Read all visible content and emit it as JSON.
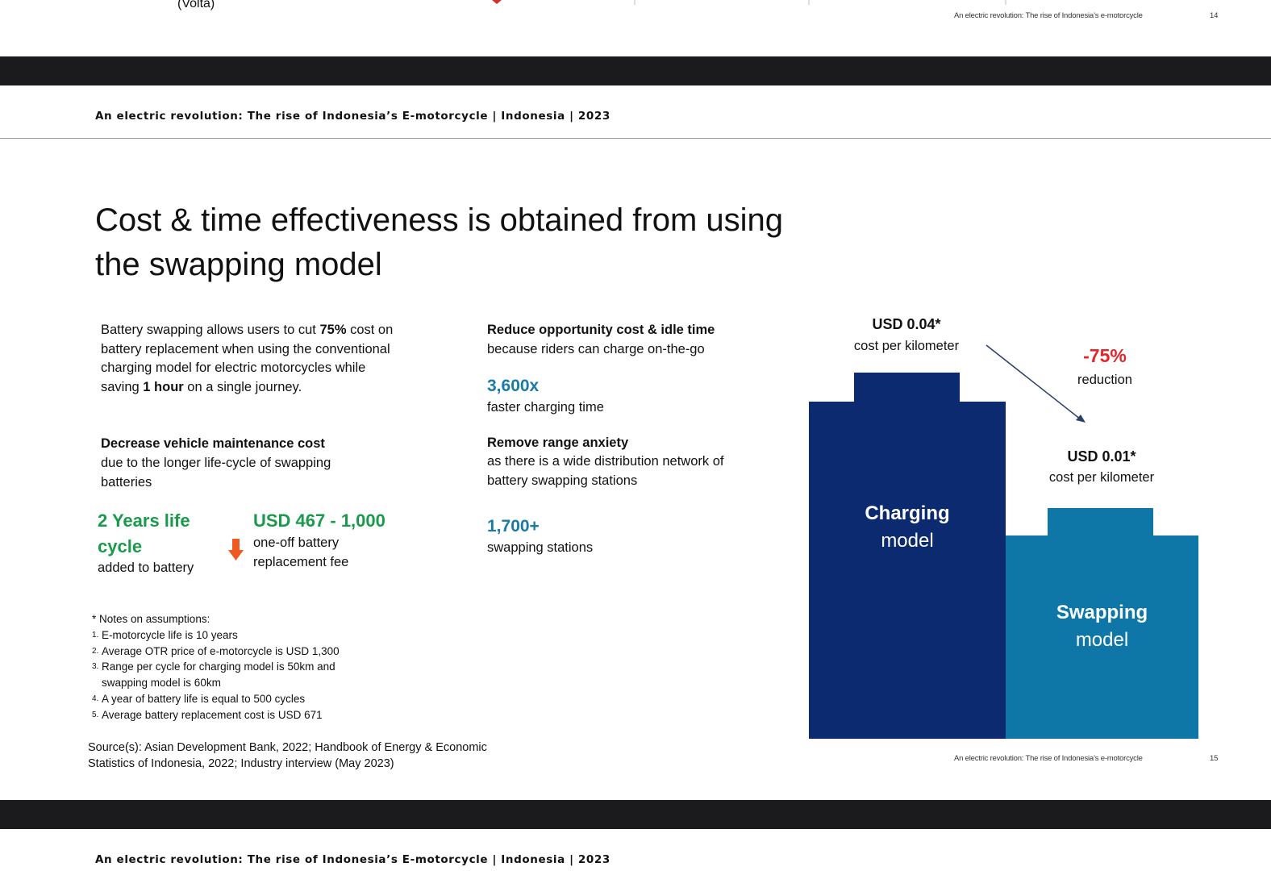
{
  "prev_page": {
    "fragment": "(Volta)",
    "footer": "An electric revolution: The rise of Indonesia’s e-motorcycle",
    "page_number": "14"
  },
  "header": {
    "title": "An electric revolution: The rise of Indonesia’s E-motorcycle | Indonesia | 2023"
  },
  "slide": {
    "title": [
      "Cost & time effectiveness is obtained from using",
      "the swapping model"
    ],
    "intro": [
      "Battery swapping allows users to cut ",
      "75%",
      " cost on battery replacement when using the conventional charging model for electric motorcycles while saving ",
      "1 hour",
      " on a single journey."
    ],
    "maintenance": {
      "heading": "Decrease vehicle maintenance cost",
      "text": "due to the longer life-cycle of swapping batteries"
    },
    "life_cycle": {
      "value": "2 Years life cycle",
      "text": "added to battery"
    },
    "fee": {
      "value": "USD 467 - 1,000",
      "text": "one-off battery replacement fee"
    },
    "notes": {
      "heading": "* Notes on assumptions:",
      "items": [
        {
          "marker": "1.",
          "text": "E-motorcycle life is 10 years"
        },
        {
          "marker": "2.",
          "text": "Average OTR price of e-motorcycle is USD 1,300"
        },
        {
          "marker": "3.",
          "text": "Range per cycle for charging model is 50km and swapping model is 60km"
        },
        {
          "marker": "4.",
          "text": "A year of battery life is equal to 500 cycles"
        },
        {
          "marker": "5.",
          "text": "Average battery replacement cost is USD 671"
        }
      ]
    },
    "source": "Source(s): Asian Development Bank, 2022; Handbook of Energy & Economic Statistics of Indonesia, 2022; Industry interview (May 2023)",
    "opportunity": {
      "heading": "Reduce opportunity cost & idle time",
      "text": "because riders can charge on-the-go"
    },
    "charging_speed": {
      "value": "3,600x",
      "text": "faster charging time"
    },
    "range": {
      "heading": "Remove range anxiety",
      "text": "as there is a wide distribution network of battery swapping stations"
    },
    "stations": {
      "value": "1,700+",
      "text": "swapping stations"
    },
    "graphic": {
      "charging": {
        "cost": "USD 0.04*",
        "unit": "cost per kilometer",
        "label": [
          "Charging",
          "model"
        ]
      },
      "swapping": {
        "cost": "USD 0.01*",
        "unit": "cost per kilometer",
        "label": [
          "Swapping",
          "model"
        ]
      },
      "change": {
        "value": "-75%",
        "text": "reduction"
      }
    },
    "footer": "An electric revolution: The rise of Indonesia’s e-motorcycle",
    "page_number": "15"
  },
  "next_page": {
    "header": "An electric revolution: The rise of Indonesia’s E-motorcycle | Indonesia | 2023"
  }
}
